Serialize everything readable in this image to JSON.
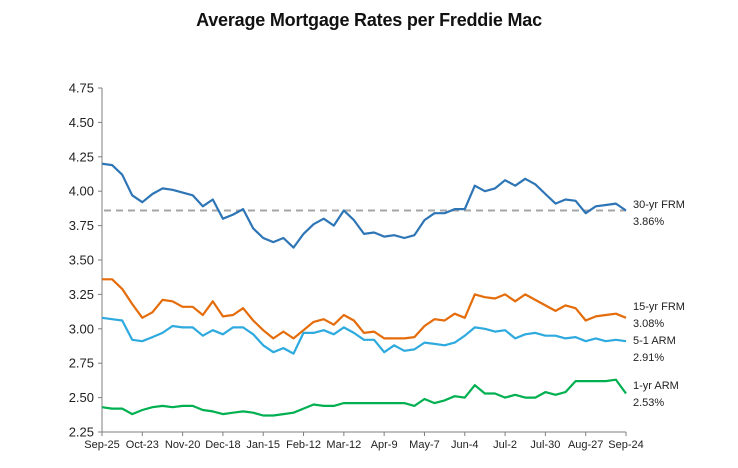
{
  "chart_data": {
    "type": "line",
    "title": "Average Mortgage Rates per Freddie Mac",
    "xlabel": "",
    "ylabel": "",
    "ylim": [
      2.25,
      4.75
    ],
    "yticks": [
      "2.25",
      "2.50",
      "2.75",
      "3.00",
      "3.25",
      "3.50",
      "3.75",
      "4.00",
      "4.25",
      "4.50",
      "4.75"
    ],
    "xticks": [
      "Sep-25",
      "Oct-23",
      "Nov-20",
      "Dec-18",
      "Jan-15",
      "Feb-12",
      "Mar-12",
      "Apr-9",
      "May-7",
      "Jun-4",
      "Jul-2",
      "Jul-30",
      "Aug-27",
      "Sep-24"
    ],
    "grid": false,
    "reference_line": {
      "value": 3.86,
      "style": "dashed",
      "color": "#a6a6a6"
    },
    "series": [
      {
        "name": "30-yr FRM",
        "end_label": "3.86%",
        "color": "#2e75b6",
        "values": [
          4.2,
          4.19,
          4.12,
          3.97,
          3.92,
          3.98,
          4.02,
          4.01,
          3.99,
          3.97,
          3.89,
          3.94,
          3.8,
          3.83,
          3.87,
          3.73,
          3.66,
          3.63,
          3.66,
          3.59,
          3.69,
          3.76,
          3.8,
          3.75,
          3.86,
          3.79,
          3.69,
          3.7,
          3.67,
          3.68,
          3.66,
          3.68,
          3.79,
          3.84,
          3.84,
          3.87,
          3.87,
          4.04,
          4.0,
          4.02,
          4.08,
          4.04,
          4.09,
          4.05,
          3.98,
          3.91,
          3.94,
          3.93,
          3.84,
          3.89,
          3.9,
          3.91,
          3.86
        ]
      },
      {
        "name": "15-yr FRM",
        "end_label": "3.08%",
        "color": "#e46c0a",
        "values": [
          3.36,
          3.36,
          3.29,
          3.18,
          3.08,
          3.12,
          3.21,
          3.2,
          3.16,
          3.16,
          3.1,
          3.2,
          3.09,
          3.1,
          3.15,
          3.06,
          2.99,
          2.93,
          2.98,
          2.93,
          2.99,
          3.05,
          3.07,
          3.03,
          3.1,
          3.06,
          2.97,
          2.98,
          2.93,
          2.93,
          2.93,
          2.94,
          3.02,
          3.07,
          3.06,
          3.11,
          3.08,
          3.25,
          3.23,
          3.22,
          3.25,
          3.2,
          3.25,
          3.21,
          3.17,
          3.13,
          3.17,
          3.15,
          3.06,
          3.09,
          3.1,
          3.11,
          3.08
        ]
      },
      {
        "name": "5-1 ARM",
        "end_label": "2.91%",
        "color": "#2eaadf",
        "values": [
          3.08,
          3.07,
          3.06,
          2.92,
          2.91,
          2.94,
          2.97,
          3.02,
          3.01,
          3.01,
          2.95,
          2.99,
          2.96,
          3.01,
          3.01,
          2.96,
          2.88,
          2.83,
          2.86,
          2.82,
          2.97,
          2.97,
          2.99,
          2.96,
          3.01,
          2.97,
          2.92,
          2.92,
          2.83,
          2.88,
          2.84,
          2.85,
          2.9,
          2.89,
          2.88,
          2.9,
          2.95,
          3.01,
          3.0,
          2.98,
          2.99,
          2.93,
          2.96,
          2.97,
          2.95,
          2.95,
          2.93,
          2.94,
          2.91,
          2.93,
          2.91,
          2.92,
          2.91
        ]
      },
      {
        "name": "1-yr ARM",
        "end_label": "2.53%",
        "color": "#00b050",
        "values": [
          2.43,
          2.42,
          2.42,
          2.38,
          2.41,
          2.43,
          2.44,
          2.43,
          2.44,
          2.44,
          2.41,
          2.4,
          2.38,
          2.39,
          2.4,
          2.39,
          2.37,
          2.37,
          2.38,
          2.39,
          2.42,
          2.45,
          2.44,
          2.44,
          2.46,
          2.46,
          2.46,
          2.46,
          2.46,
          2.46,
          2.46,
          2.44,
          2.49,
          2.46,
          2.48,
          2.51,
          2.5,
          2.59,
          2.53,
          2.53,
          2.5,
          2.52,
          2.5,
          2.5,
          2.54,
          2.52,
          2.54,
          2.62,
          2.62,
          2.62,
          2.62,
          2.63,
          2.53
        ]
      }
    ]
  }
}
